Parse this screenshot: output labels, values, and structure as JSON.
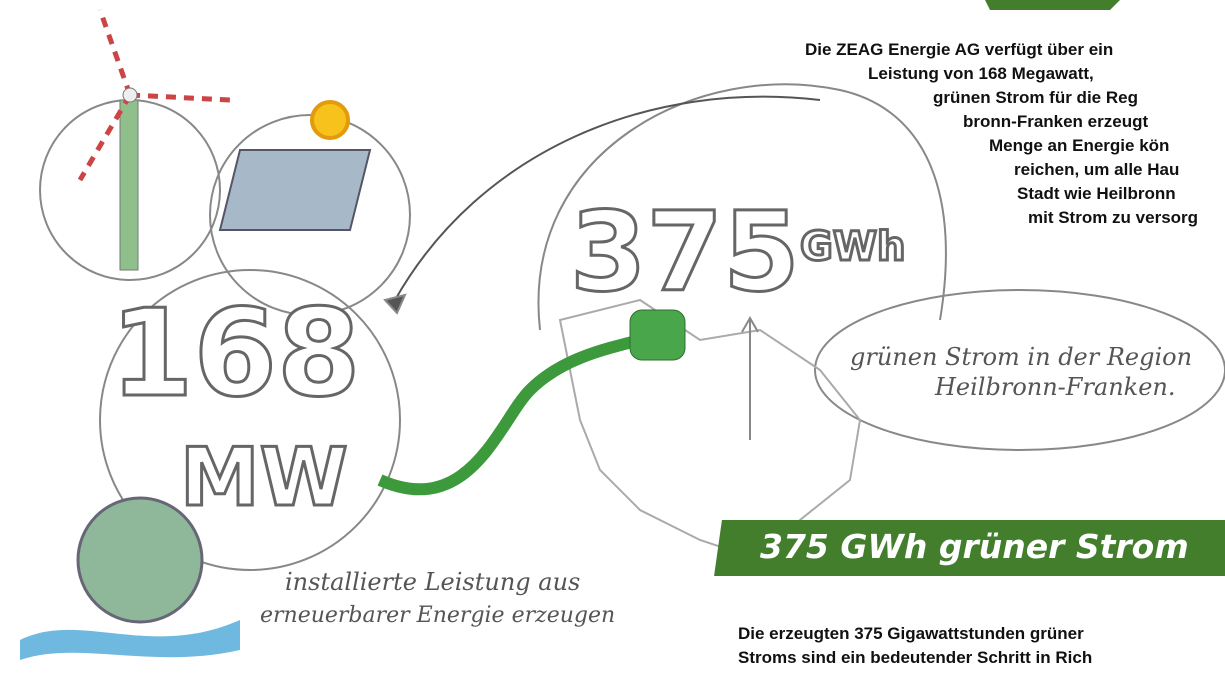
{
  "intro": {
    "lines": [
      "Die ZEAG Energie AG verfügt über ein",
      "Leistung von 168 Megawatt,",
      "grünen Strom für die Reg",
      "bronn-Franken erzeugt",
      "Menge an Energie kön",
      "reichen, um alle Hau",
      "Stadt wie Heilbronn",
      "mit Strom zu versorg"
    ]
  },
  "illustration": {
    "energy_number": "375",
    "energy_unit": "GWh",
    "power_number": "168",
    "power_unit": "MW",
    "bubble_note": [
      "grünen Strom in der Region",
      "Heilbronn-Franken."
    ],
    "power_note": [
      "installierte Leistung aus",
      "erneuerbarer Energie erzeugen"
    ]
  },
  "section": {
    "heading": "375 GWh grüner Strom",
    "lines": [
      "Die erzeugten 375 Gigawattstunden grüner",
      "Stroms sind ein bedeutender Schritt in Rich"
    ]
  }
}
